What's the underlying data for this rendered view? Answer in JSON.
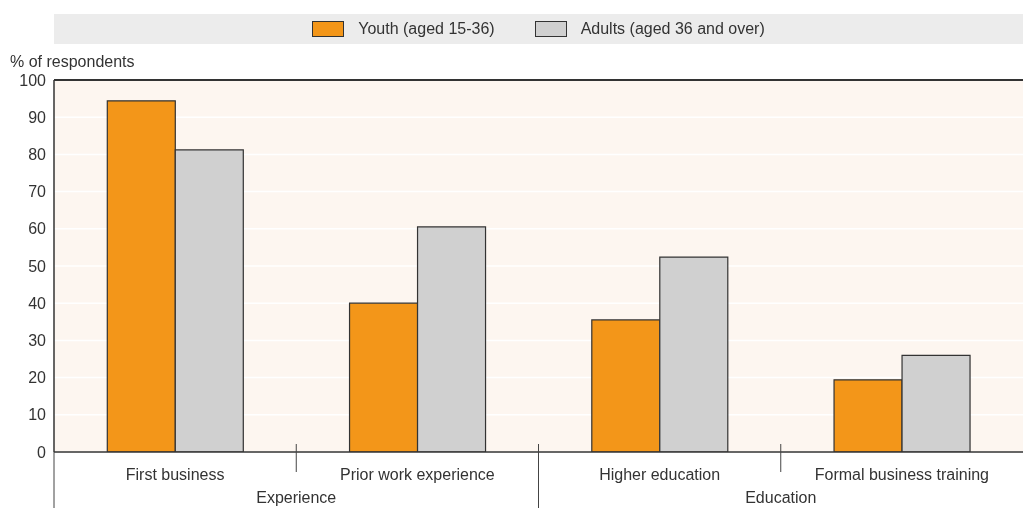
{
  "chart_data": {
    "type": "bar",
    "ylabel": "% of respondents",
    "categories": [
      "First business",
      "Prior work experience",
      "Higher education",
      "Formal business training"
    ],
    "series": [
      {
        "name": "Youth (aged 15-36)",
        "color": "#f39619",
        "values": [
          94.4,
          40,
          35.5,
          19.4
        ]
      },
      {
        "name": "Adults (aged 36 and over)",
        "color": "#d0d0d0",
        "values": [
          81.2,
          60.5,
          52.4,
          26
        ]
      }
    ],
    "annotations": [
      "Experience",
      "Education"
    ],
    "ylim": [
      0,
      100
    ],
    "yticks": [
      0,
      10,
      20,
      30,
      40,
      50,
      60,
      70,
      80,
      90,
      100
    ],
    "grid": "y",
    "legend": "top"
  }
}
